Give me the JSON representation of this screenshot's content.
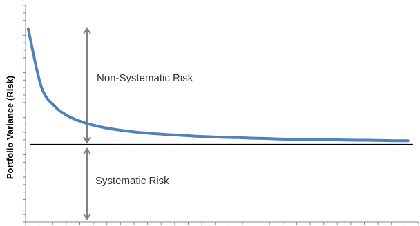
{
  "chart_data": {
    "type": "line",
    "title": "",
    "xlabel": "",
    "ylabel": "Portfolio Variance (Risk)",
    "x": [
      1,
      2,
      3,
      4,
      5,
      6,
      7,
      8,
      9,
      10,
      11,
      12,
      13,
      14,
      15,
      16,
      17,
      18,
      19,
      20,
      21,
      22,
      23,
      24,
      25,
      26,
      27,
      28,
      29,
      30
    ],
    "series": [
      {
        "values": [
          75.0,
          52.5,
          45.0,
          41.2,
          39.0,
          37.5,
          36.4,
          35.6,
          35.0,
          34.5,
          34.1,
          33.8,
          33.5,
          33.2,
          33.0,
          32.8,
          32.7,
          32.5,
          32.4,
          32.2,
          32.1,
          32.0,
          31.9,
          31.9,
          31.8,
          31.7,
          31.7,
          31.6,
          31.5,
          31.5
        ],
        "color": "#4F81BD"
      }
    ],
    "systematic_level": 30,
    "ylim": [
      0,
      84
    ],
    "xlim": [
      0.8,
      30.8
    ],
    "grid": false,
    "y_ticks_labeled": false,
    "x_ticks_labeled": false,
    "annotations": {
      "upper": "Non-Systematic Risk",
      "lower": "Systematic Risk"
    },
    "colors": {
      "line": "#4F81BD",
      "arrow": "#808080",
      "systematic_line": "#000000",
      "axis": "#868686"
    }
  }
}
